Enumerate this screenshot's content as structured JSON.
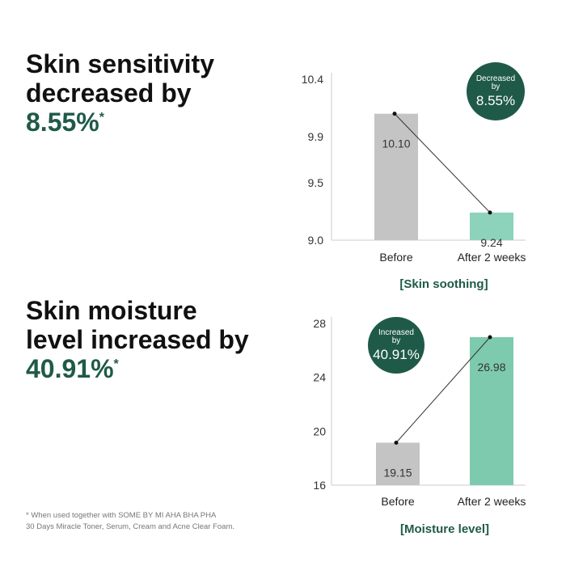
{
  "chart_data": [
    {
      "type": "bar",
      "headline": [
        "Skin sensitivity",
        "decreased by"
      ],
      "highlight": "8.55%",
      "note_mark": "*",
      "badge": [
        "Decreased",
        "by",
        "8.55%"
      ],
      "caption": "[Skin soothing]",
      "categories": [
        "Before",
        "After 2 weeks"
      ],
      "values": [
        10.1,
        9.24
      ],
      "value_labels": [
        "10.10",
        "9.24"
      ],
      "colors": [
        "#c4c4c4",
        "#8dd3bb"
      ],
      "ylim": [
        9,
        10.4
      ],
      "yticks": [
        {
          "value": 9,
          "label": "9.0"
        },
        9.5,
        9.9,
        10.4
      ]
    },
    {
      "type": "bar",
      "headline": [
        "Skin moisture",
        "level increased by"
      ],
      "highlight": "40.91%",
      "note_mark": "*",
      "badge": [
        "Increased",
        "by",
        "40.91%"
      ],
      "caption": "[Moisture level]",
      "categories": [
        "Before",
        "After 2 weeks"
      ],
      "values": [
        19.15,
        26.98
      ],
      "colors": [
        "#c4c4c4",
        "#7ecaae"
      ],
      "ylim": [
        16,
        28
      ],
      "yticks": [
        16,
        20,
        24,
        28
      ]
    }
  ],
  "footnote": [
    "* When used together with SOME BY MI AHA BHA PHA",
    "30 Days Miracle Toner, Serum, Cream and Acne Clear Foam."
  ]
}
